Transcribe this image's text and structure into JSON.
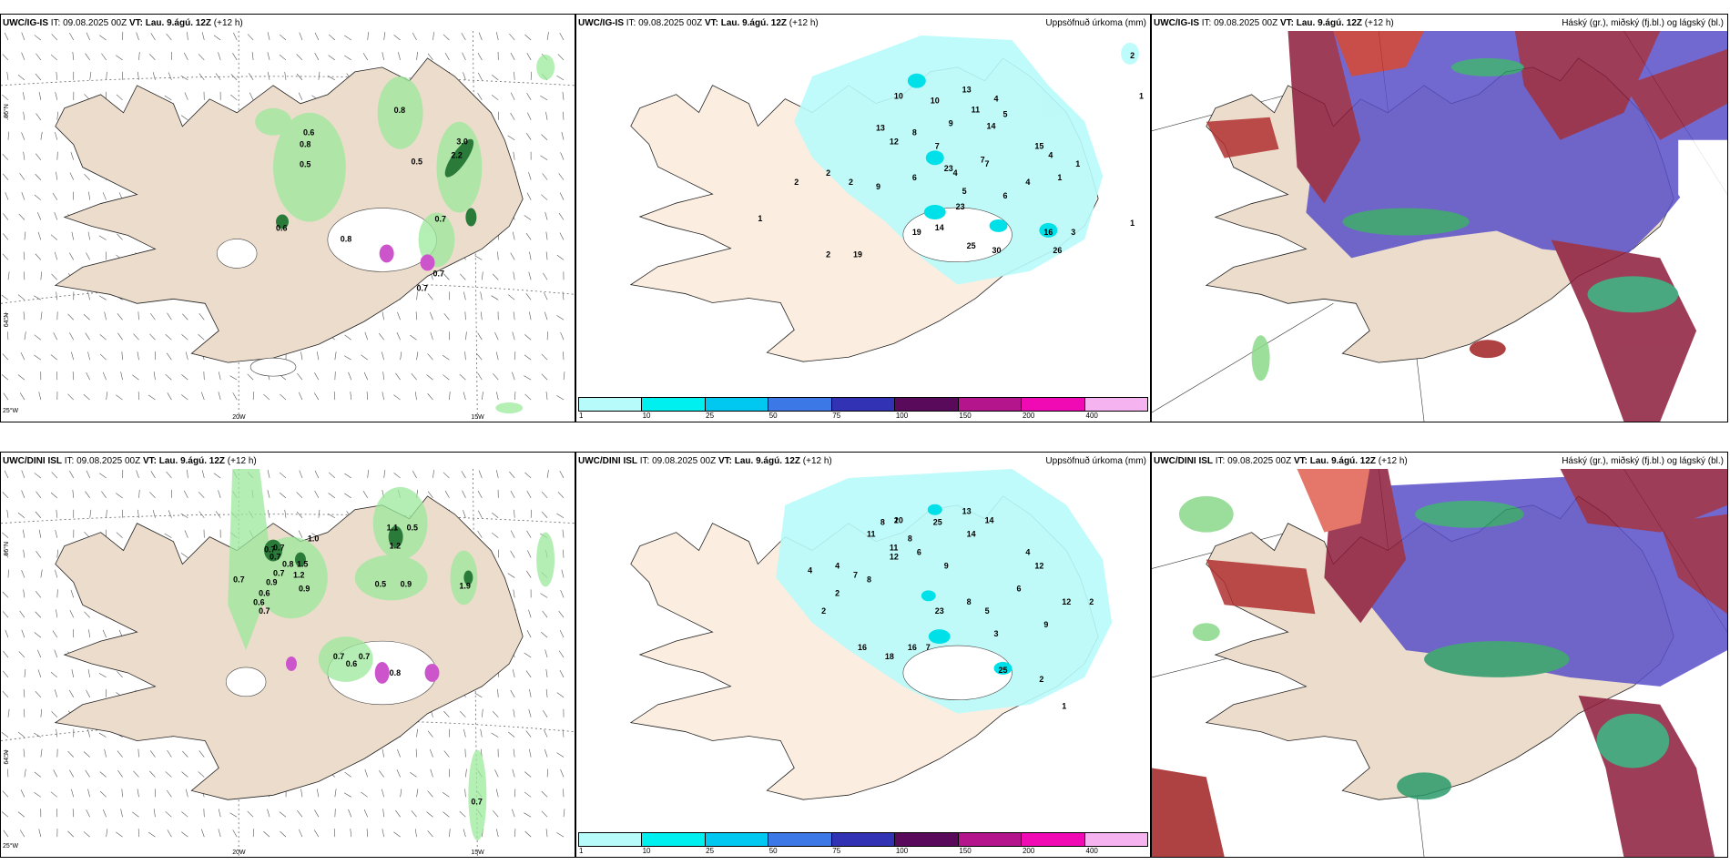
{
  "panels": {
    "p1": {
      "model": "UWC/IG-IS",
      "it": "IT: 09.08.2025 00Z",
      "vt_label": "VT:",
      "vt": "Lau. 9.ágú. 12Z",
      "lead": "(+12 h)",
      "right": ""
    },
    "p2": {
      "model": "UWC/IG-IS",
      "it": "IT: 09.08.2025 00Z",
      "vt_label": "VT:",
      "vt": "Lau. 9.ágú. 12Z",
      "lead": "(+12 h)",
      "right": "Uppsöfnuð úrkoma (mm)"
    },
    "p3": {
      "model": "UWC/IG-IS",
      "it": "IT: 09.08.2025 00Z",
      "vt_label": "VT:",
      "vt": "Lau. 9.ágú. 12Z",
      "lead": "(+12 h)",
      "right": "Háský (gr.), miðský (fj.bl.) og lágský (bl.)"
    },
    "p4": {
      "model": "UWC/DINI ISL",
      "it": "IT: 09.08.2025 00Z",
      "vt_label": "VT:",
      "vt": "Lau. 9.ágú. 12Z",
      "lead": "(+12 h)",
      "right": ""
    },
    "p5": {
      "model": "UWC/DINI ISL",
      "it": "IT: 09.08.2025 00Z",
      "vt_label": "VT:",
      "vt": "Lau. 9.ágú. 12Z",
      "lead": "(+12 h)",
      "right": "Uppsöfnuð úrkoma (mm)"
    },
    "p6": {
      "model": "UWC/DINI ISL",
      "it": "IT: 09.08.2025 00Z",
      "vt_label": "VT:",
      "vt": "Lau. 9.ágú. 12Z",
      "lead": "(+12 h)",
      "right": "Háský (gr.), miðský (fj.bl.) og lágský (bl.)"
    }
  },
  "grid_labels": {
    "lat66": "66°N",
    "lat64": "64°N",
    "lon25": "25°W",
    "lon20": "20W",
    "lon15": "15W"
  },
  "colorbar": {
    "ticks": [
      "1",
      "10",
      "25",
      "50",
      "75",
      "100",
      "150",
      "200",
      "400"
    ],
    "colors": [
      "#b8fbfb",
      "#00f0f0",
      "#00c8f0",
      "#3c78e6",
      "#3232b4",
      "#5a0a5a",
      "#b4148c",
      "#f00ab4",
      "#f5b4f0"
    ]
  },
  "colors": {
    "land": "#ecdccb",
    "land_light": "#fbeee0",
    "green": "#9be99b",
    "dkgreen": "#2a7a3a",
    "cyan": "#b8fbfb",
    "purple": "#5a50c8",
    "maroon": "#8c1c3c",
    "red": "#c0302a"
  },
  "precip_labels_top": [
    "0.6",
    "0.8",
    "0.5",
    "0.8",
    "0.5",
    "3.0",
    "2.2",
    "0.7",
    "0.6",
    "0.8",
    "0.7",
    "0.7"
  ],
  "precip_labels_bottom": [
    "1.0",
    "0.7",
    "0.7",
    "0.8",
    "0.7",
    "0.9",
    "1.5",
    "1.2",
    "0.7",
    "0.6",
    "0.7",
    "0.9",
    "0.7",
    "0.5",
    "0.6",
    "1.1",
    "0.5",
    "1.2",
    "0.9",
    "0.7",
    "0.6",
    "0.7",
    "0.8",
    "1.9",
    "0.7"
  ],
  "accum_top": [
    "10",
    "10",
    "13",
    "4",
    "5",
    "7",
    "9",
    "11",
    "12",
    "13",
    "8",
    "7",
    "14",
    "4",
    "15",
    "2",
    "2",
    "2",
    "9",
    "6",
    "4",
    "23",
    "7",
    "5",
    "23",
    "6",
    "4",
    "1",
    "1",
    "19",
    "19",
    "16",
    "26",
    "25",
    "30",
    "14",
    "3",
    "2",
    "1",
    "1",
    "2",
    "1"
  ],
  "accum_bottom": [
    "8",
    "10",
    "13",
    "25",
    "14",
    "11",
    "11",
    "12",
    "8",
    "6",
    "9",
    "12",
    "4",
    "4",
    "7",
    "8",
    "2",
    "2",
    "16",
    "16",
    "18",
    "23",
    "8",
    "7",
    "25",
    "14",
    "5",
    "3",
    "2",
    "1",
    "2",
    "2",
    "9",
    "12",
    "6",
    "4"
  ]
}
